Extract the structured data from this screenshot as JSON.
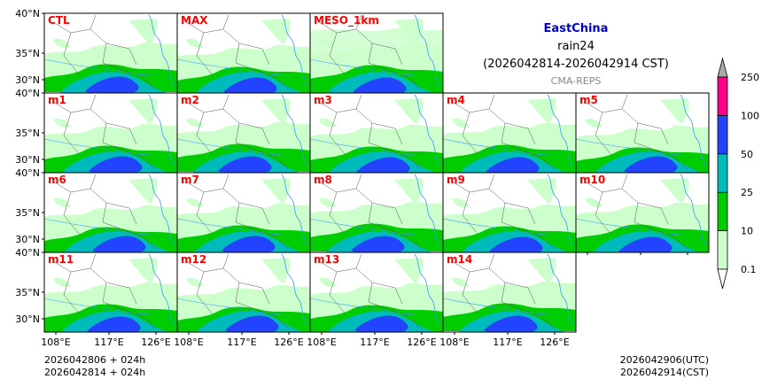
{
  "header": {
    "region": "EastChina",
    "variable": "rain24",
    "period": "(2026042814-2026042914 CST)",
    "source": "CMA-REPS"
  },
  "footer": {
    "init_utc_line": "2026042806  +  024h",
    "init_cst_line": "2026042814  +  024h",
    "issue_utc": "2026042906(UTC)",
    "issue_cst": "2026042914(CST)"
  },
  "axes": {
    "lat_ticks": [
      "40°N",
      "35°N",
      "30°N"
    ],
    "lon_ticks": [
      "108°E",
      "117°E",
      "126°E"
    ]
  },
  "panels": [
    [
      "CTL",
      "MAX",
      "MESO_1km"
    ],
    [
      "m1",
      "m2",
      "m3",
      "m4",
      "m5"
    ],
    [
      "m6",
      "m7",
      "m8",
      "m9",
      "m10"
    ],
    [
      "m11",
      "m12",
      "m13",
      "m14"
    ]
  ],
  "colorbar": {
    "levels": [
      "0.1",
      "10",
      "25",
      "50",
      "100",
      "250"
    ],
    "colors": [
      "#ccffcc",
      "#00cc00",
      "#00bbbb",
      "#2244ff",
      "#ff0088"
    ],
    "over_color": "#aaaaaa"
  },
  "colors": {
    "label": "#ff0000",
    "region_title": "#0000cc",
    "source": "#888888",
    "river": "#3399ff",
    "border": "#555555"
  }
}
